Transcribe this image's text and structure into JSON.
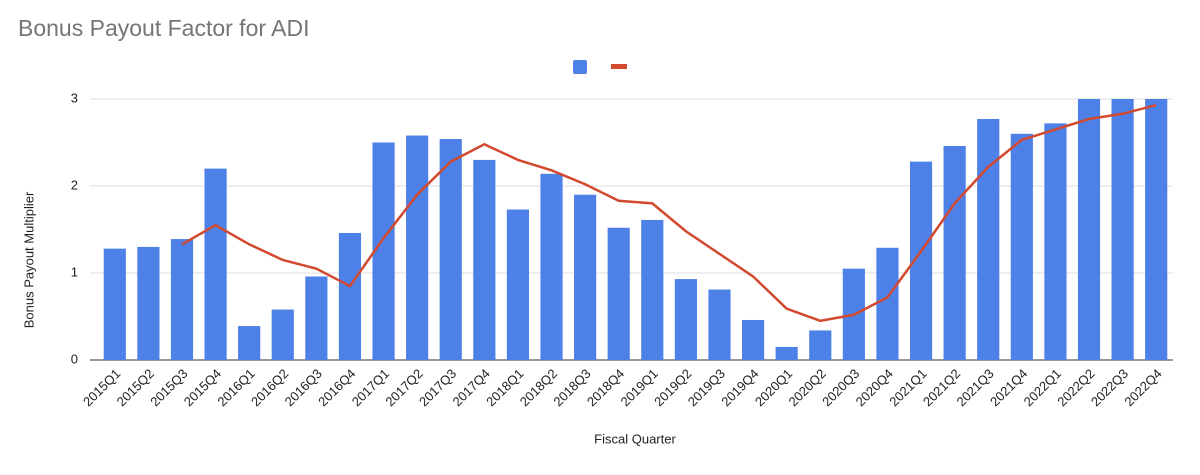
{
  "chart_data": {
    "type": "bar",
    "title": "Bonus Payout Factor for ADI",
    "x_label": "Fiscal Quarter",
    "y_label": "Bonus Payout Multiplier",
    "categories": [
      "2015Q1",
      "2015Q2",
      "2015Q3",
      "2015Q4",
      "2016Q1",
      "2016Q2",
      "2016Q3",
      "2016Q4",
      "2017Q1",
      "2017Q2",
      "2017Q3",
      "2017Q4",
      "2018Q1",
      "2018Q2",
      "2018Q3",
      "2018Q4",
      "2019Q1",
      "2019Q2",
      "2019Q3",
      "2019Q4",
      "2020Q1",
      "2020Q2",
      "2020Q3",
      "2020Q4",
      "2021Q1",
      "2021Q2",
      "2021Q3",
      "2021Q4",
      "2022Q1",
      "2022Q2",
      "2022Q3",
      "2022Q4"
    ],
    "series": [
      {
        "type": "bar",
        "color": "#4e81e8",
        "values": [
          1.28,
          1.3,
          1.39,
          2.2,
          0.39,
          0.58,
          0.96,
          1.46,
          2.5,
          2.58,
          2.54,
          2.3,
          1.73,
          2.14,
          1.9,
          1.52,
          1.61,
          0.93,
          0.81,
          0.46,
          0.15,
          0.34,
          1.05,
          1.29,
          2.28,
          2.46,
          2.77,
          2.6,
          2.72,
          3.0,
          3.0,
          3.0
        ]
      },
      {
        "type": "line",
        "color": "#d2492f",
        "values": [
          null,
          null,
          1.33,
          1.55,
          1.33,
          1.15,
          1.05,
          0.85,
          1.4,
          1.9,
          2.28,
          2.48,
          2.3,
          2.18,
          2.02,
          1.83,
          1.8,
          1.48,
          1.22,
          0.96,
          0.59,
          0.45,
          0.52,
          0.72,
          1.25,
          1.8,
          2.22,
          2.53,
          2.65,
          2.77,
          2.83,
          2.93
        ]
      }
    ],
    "ylim": [
      0,
      3
    ],
    "yticks": [
      0,
      1,
      2,
      3
    ],
    "grid": true,
    "legend": "top"
  }
}
